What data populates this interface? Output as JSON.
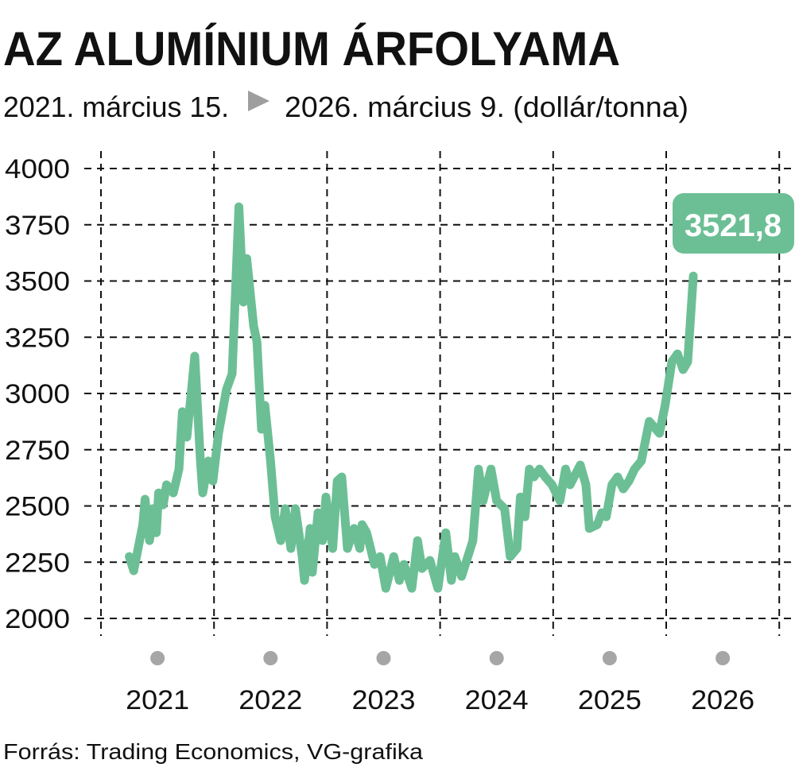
{
  "title": "AZ ALUMÍNIUM ÁRFOLYAMA",
  "subtitle": {
    "start": "2021. március 15.",
    "end": "2026. március 9. (dollár/tonna)"
  },
  "source": "Forrás: Trading Economics, VG-grafika",
  "colors": {
    "line": "#6cbf95",
    "dots": "#a6a6a6",
    "arrow": "#9e9e9e"
  },
  "chart_data": {
    "type": "line",
    "title": "AZ ALUMÍNIUM ÁRFOLYAMA",
    "ylabel": "dollár/tonna",
    "xlabel": "",
    "ylim": [
      2000,
      4000
    ],
    "xlim": [
      2021,
      2026.99
    ],
    "yticks": [
      "4000",
      "3750",
      "3500",
      "3250",
      "3000",
      "2750",
      "2500",
      "2250",
      "2000"
    ],
    "xticks": [
      "2021",
      "2022",
      "2023",
      "2024",
      "2025",
      "2026"
    ],
    "grid": true,
    "last_value_label": "3521,8",
    "series": [
      {
        "name": "Alumínium",
        "x": [
          2021.25,
          2021.29,
          2021.37,
          2021.39,
          2021.43,
          2021.46,
          2021.49,
          2021.51,
          2021.55,
          2021.58,
          2021.64,
          2021.69,
          2021.72,
          2021.76,
          2021.83,
          2021.88,
          2021.9,
          2021.95,
          2021.99,
          2022.04,
          2022.11,
          2022.16,
          2022.22,
          2022.26,
          2022.29,
          2022.35,
          2022.38,
          2022.42,
          2022.45,
          2022.5,
          2022.54,
          2022.59,
          2022.63,
          2022.68,
          2022.72,
          2022.78,
          2022.8,
          2022.85,
          2022.87,
          2022.92,
          2022.96,
          2022.99,
          2023.05,
          2023.09,
          2023.13,
          2023.18,
          2023.24,
          2023.29,
          2023.31,
          2023.35,
          2023.42,
          2023.47,
          2023.52,
          2023.59,
          2023.64,
          2023.68,
          2023.75,
          2023.8,
          2023.84,
          2023.91,
          2023.98,
          2024.05,
          2024.1,
          2024.13,
          2024.19,
          2024.29,
          2024.34,
          2024.38,
          2024.45,
          2024.5,
          2024.57,
          2024.62,
          2024.68,
          2024.71,
          2024.75,
          2024.79,
          2024.83,
          2024.88,
          2024.93,
          2024.99,
          2025.06,
          2025.11,
          2025.15,
          2025.24,
          2025.29,
          2025.32,
          2025.39,
          2025.43,
          2025.47,
          2025.52,
          2025.57,
          2025.62,
          2025.67,
          2025.72,
          2025.78,
          2025.85,
          2025.94,
          2025.99,
          2026.05,
          2026.1,
          2026.15,
          2026.19,
          2026.24
        ],
        "y": [
          2275,
          2212,
          2417,
          2530,
          2346,
          2488,
          2381,
          2558,
          2505,
          2594,
          2558,
          2664,
          2919,
          2806,
          3166,
          2700,
          2558,
          2700,
          2611,
          2823,
          3017,
          3088,
          3830,
          3406,
          3600,
          3300,
          3230,
          2841,
          2947,
          2700,
          2452,
          2346,
          2488,
          2311,
          2488,
          2275,
          2169,
          2400,
          2205,
          2470,
          2346,
          2540,
          2311,
          2611,
          2629,
          2311,
          2400,
          2311,
          2417,
          2381,
          2240,
          2275,
          2134,
          2275,
          2169,
          2240,
          2134,
          2346,
          2222,
          2258,
          2134,
          2381,
          2169,
          2275,
          2187,
          2346,
          2664,
          2523,
          2664,
          2523,
          2488,
          2275,
          2311,
          2540,
          2452,
          2664,
          2629,
          2664,
          2629,
          2594,
          2523,
          2664,
          2594,
          2682,
          2594,
          2400,
          2417,
          2470,
          2452,
          2594,
          2629,
          2576,
          2611,
          2664,
          2700,
          2876,
          2823,
          2947,
          3141,
          3176,
          3106,
          3141,
          3521.8
        ]
      }
    ]
  }
}
